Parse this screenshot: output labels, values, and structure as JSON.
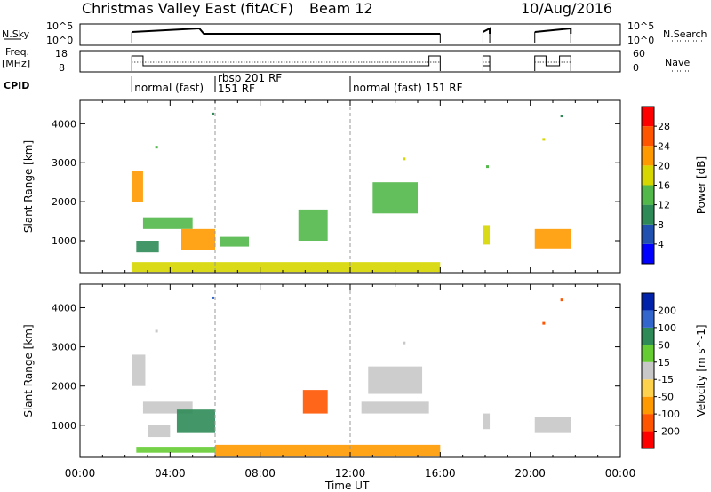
{
  "header": {
    "station": "Christmas Valley East (fitACF)",
    "beam": "Beam 12",
    "date": "10/Aug/2016"
  },
  "panels": {
    "nsky_label": "N.Sky",
    "nsky_ticks": [
      "10^5",
      "10^0"
    ],
    "nsearch_label": "N.Search",
    "freq_label_1": "Freq.",
    "freq_label_2": "[MHz]",
    "freq_ticks": [
      "18",
      "8"
    ],
    "nave_label": "Nave",
    "nave_ticks": [
      "60",
      "0"
    ],
    "cpid_label": "CPID"
  },
  "cpid_segments": [
    {
      "start_h": 2.3,
      "label": "normal (fast)"
    },
    {
      "start_h": 6.0,
      "label": "rbsp 201 RF"
    },
    {
      "start_h": 6.0,
      "label": "151 RF"
    },
    {
      "start_h": 12.0,
      "label": "normal (fast) 151 RF"
    }
  ],
  "colors": {
    "power": [
      "#0000ff",
      "#2050b0",
      "#2e8b57",
      "#52b84a",
      "#d6d600",
      "#ff9900",
      "#ff5500",
      "#ff0000"
    ],
    "velocity": [
      "#ff0000",
      "#ff5500",
      "#ff9900",
      "#ffd24d",
      "#c8c8c8",
      "#66cc33",
      "#2e8b57",
      "#3366cc",
      "#0022aa"
    ]
  },
  "chart_data": [
    {
      "type": "heatmap",
      "name": "Power",
      "xlabel": "Time UT",
      "ylabel": "Slant Range [km]",
      "xlim": [
        0,
        24
      ],
      "ylim": [
        180,
        4600
      ],
      "x_ticks": [
        "00:00",
        "04:00",
        "08:00",
        "12:00",
        "16:00",
        "20:00",
        "00:00"
      ],
      "y_ticks": [
        1000,
        2000,
        3000,
        4000
      ],
      "colorbar_label": "Power [dB]",
      "colorbar_ticks": [
        4,
        8,
        12,
        16,
        20,
        24,
        28
      ],
      "colorbar_range": [
        0,
        32
      ],
      "regions": [
        {
          "t": [
            2.3,
            2.8
          ],
          "r": [
            2000,
            2800
          ],
          "v": 20
        },
        {
          "t": [
            2.8,
            5.0
          ],
          "r": [
            1300,
            1600
          ],
          "v": 14
        },
        {
          "t": [
            2.5,
            3.5
          ],
          "r": [
            700,
            1000
          ],
          "v": 10
        },
        {
          "t": [
            4.5,
            6.0
          ],
          "r": [
            750,
            1300
          ],
          "v": 20
        },
        {
          "t": [
            6.2,
            7.5
          ],
          "r": [
            850,
            1100
          ],
          "v": 12
        },
        {
          "t": [
            2.3,
            16.0
          ],
          "r": [
            200,
            450
          ],
          "v": 16
        },
        {
          "t": [
            9.7,
            11.0
          ],
          "r": [
            1000,
            1800
          ],
          "v": 12
        },
        {
          "t": [
            13.0,
            15.0
          ],
          "r": [
            1700,
            2500
          ],
          "v": 14
        },
        {
          "t": [
            17.9,
            18.2
          ],
          "r": [
            900,
            1400
          ],
          "v": 16
        },
        {
          "t": [
            20.2,
            21.8
          ],
          "r": [
            800,
            1300
          ],
          "v": 20
        }
      ],
      "scatter": [
        {
          "t": 3.4,
          "r": 3400,
          "v": 12
        },
        {
          "t": 5.9,
          "r": 4250,
          "v": 8
        },
        {
          "t": 14.4,
          "r": 3100,
          "v": 16
        },
        {
          "t": 18.1,
          "r": 2900,
          "v": 12
        },
        {
          "t": 21.4,
          "r": 4200,
          "v": 8
        },
        {
          "t": 20.6,
          "r": 3600,
          "v": 16
        }
      ]
    },
    {
      "type": "heatmap",
      "name": "Velocity",
      "xlabel": "Time UT",
      "ylabel": "Slant Range [km]",
      "xlim": [
        0,
        24
      ],
      "ylim": [
        180,
        4600
      ],
      "x_ticks": [
        "00:00",
        "04:00",
        "08:00",
        "12:00",
        "16:00",
        "20:00",
        "00:00"
      ],
      "y_ticks": [
        1000,
        2000,
        3000,
        4000
      ],
      "colorbar_label": "Velocity [m s^-1]",
      "colorbar_ticks": [
        200,
        100,
        50,
        15,
        -15,
        -50,
        -100,
        -200
      ],
      "regions": [
        {
          "t": [
            2.3,
            2.9
          ],
          "r": [
            2000,
            2800
          ],
          "v": 0
        },
        {
          "t": [
            2.8,
            5.0
          ],
          "r": [
            1300,
            1600
          ],
          "v": 0
        },
        {
          "t": [
            3.0,
            4.0
          ],
          "r": [
            700,
            1000
          ],
          "v": 0
        },
        {
          "t": [
            4.3,
            6.0
          ],
          "r": [
            800,
            1400
          ],
          "v": 80
        },
        {
          "t": [
            2.5,
            6.0
          ],
          "r": [
            300,
            450
          ],
          "v": 40
        },
        {
          "t": [
            6.0,
            16.0
          ],
          "r": [
            200,
            500
          ],
          "v": -60
        },
        {
          "t": [
            9.9,
            11.0
          ],
          "r": [
            1300,
            1900
          ],
          "v": -100
        },
        {
          "t": [
            12.8,
            15.2
          ],
          "r": [
            1800,
            2500
          ],
          "v": 0
        },
        {
          "t": [
            12.5,
            15.5
          ],
          "r": [
            1300,
            1600
          ],
          "v": 0
        },
        {
          "t": [
            17.9,
            18.2
          ],
          "r": [
            900,
            1300
          ],
          "v": 0
        },
        {
          "t": [
            20.2,
            21.8
          ],
          "r": [
            800,
            1200
          ],
          "v": 0
        }
      ],
      "scatter": [
        {
          "t": 3.4,
          "r": 3400,
          "v": 0
        },
        {
          "t": 5.9,
          "r": 4250,
          "v": 150
        },
        {
          "t": 14.4,
          "r": 3100,
          "v": 0
        },
        {
          "t": 21.4,
          "r": 4200,
          "v": -150
        },
        {
          "t": 20.6,
          "r": 3600,
          "v": -150
        }
      ]
    }
  ]
}
